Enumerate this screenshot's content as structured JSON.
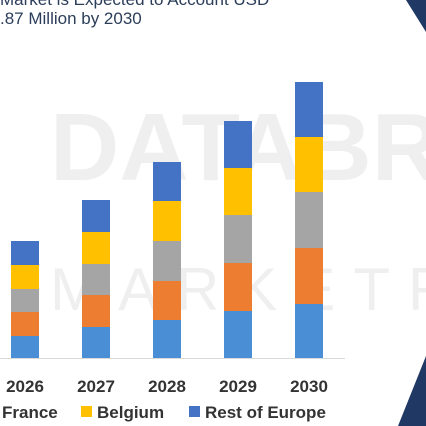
{
  "title": {
    "line1": "Market is Expected to Account USD",
    "line2": ".87 Million by 2030"
  },
  "watermark": "DATABRIDGE MARKET RESEARCH",
  "colors": {
    "France": "#4a8fd6",
    "Germany": "#ed7d31",
    "Italy": "#a5a5a5",
    "Belgium": "#ffc000",
    "Rest of Europe": "#4472c4",
    "decor_dark": "#1f3864",
    "axis": "#d9d9d9",
    "text": "#333333"
  },
  "chart_data": {
    "type": "bar",
    "stacked": true,
    "categories": [
      "2026",
      "2027",
      "2028",
      "2029",
      "2030"
    ],
    "series": [
      {
        "name": "France",
        "values": [
          22,
          31,
          38,
          47,
          54
        ]
      },
      {
        "name": "",
        "values": [
          24,
          32,
          39,
          48,
          56
        ]
      },
      {
        "name": "",
        "values": [
          23,
          31,
          40,
          48,
          56
        ]
      },
      {
        "name": "Belgium",
        "values": [
          24,
          32,
          40,
          47,
          55
        ]
      },
      {
        "name": "Rest of Europe",
        "values": [
          24,
          32,
          39,
          47,
          55
        ]
      }
    ],
    "legend_visible": [
      "France",
      "Belgium",
      "Rest of Europe"
    ],
    "legend_position": "bottom",
    "grid": false
  }
}
